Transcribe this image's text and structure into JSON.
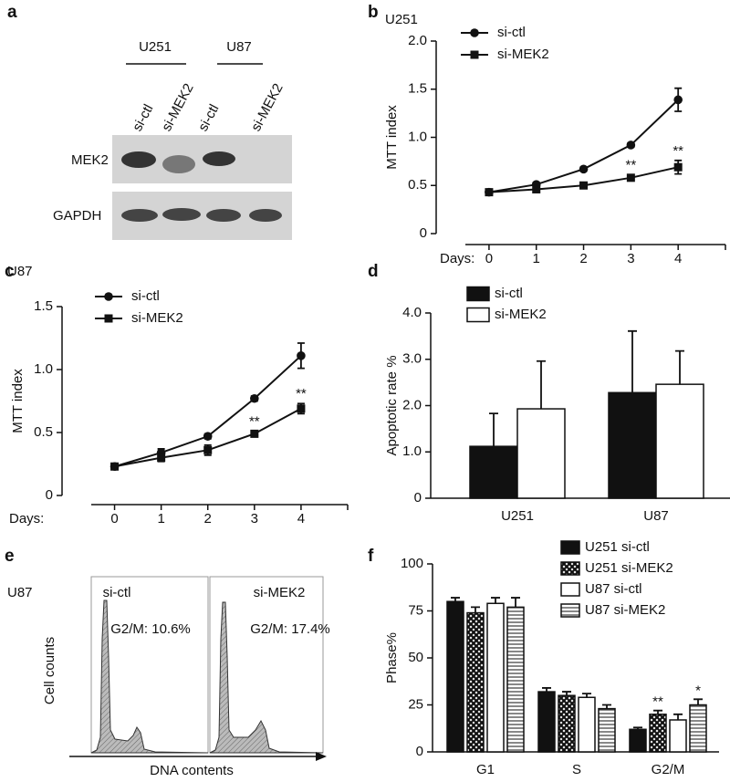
{
  "panel_labels": [
    "a",
    "b",
    "c",
    "d",
    "e",
    "f"
  ],
  "blot": {
    "groups": [
      "U251",
      "U87"
    ],
    "lanes": [
      "si-ctl",
      "si-MEK2",
      "si-ctl",
      "si-MEK2"
    ],
    "rows": [
      "MEK2",
      "GAPDH"
    ]
  },
  "flow": {
    "cell_line": "U87",
    "samples": [
      {
        "name": "si-ctl",
        "label": "G2/M: 10.6%"
      },
      {
        "name": "si-MEK2",
        "label": "G2/M: 17.4%"
      }
    ],
    "ylabel": "Cell counts",
    "xlabel": "DNA contents"
  },
  "chart_data": [
    {
      "type": "line",
      "subtitle": "U251",
      "xlabel": "Days:",
      "ylabel": "MTT index",
      "x": [
        0,
        1,
        2,
        3,
        4
      ],
      "xlim": [
        -0.5,
        5
      ],
      "xticks": [
        0,
        1,
        2,
        3,
        4
      ],
      "ylim": [
        0,
        2
      ],
      "yticks": [
        0,
        0.5,
        {
          "value": 1,
          "label": "1.0"
        },
        1.5,
        {
          "value": 2,
          "label": "2.0"
        }
      ],
      "series": [
        {
          "name": "si-ctl",
          "color": "#111111",
          "marker": "circle",
          "values": [
            0.43,
            0.51,
            0.67,
            0.92,
            1.39
          ],
          "errors": [
            0.02,
            0.02,
            0.02,
            0.02,
            0.12
          ]
        },
        {
          "name": "si-MEK2",
          "color": "#111111",
          "marker": "square",
          "values": [
            0.43,
            0.46,
            0.5,
            0.58,
            0.69
          ],
          "errors": [
            0.02,
            0.02,
            0.02,
            0.03,
            0.07
          ],
          "significance": [
            null,
            null,
            null,
            "**",
            "**"
          ]
        }
      ]
    },
    {
      "type": "line",
      "subtitle": "U87",
      "xlabel": "Days:",
      "ylabel": "MTT index",
      "x": [
        0,
        1,
        2,
        3,
        4
      ],
      "xlim": [
        -0.5,
        5
      ],
      "xticks": [
        0,
        1,
        2,
        3,
        4
      ],
      "ylim": [
        0,
        1.5
      ],
      "yticks": [
        0,
        0.5,
        {
          "value": 1,
          "label": "1.0"
        },
        1.5
      ],
      "series": [
        {
          "name": "si-ctl",
          "color": "#111111",
          "marker": "circle",
          "values": [
            0.23,
            0.34,
            0.47,
            0.77,
            1.11
          ],
          "errors": [
            0.01,
            0.03,
            0.02,
            0.02,
            0.1
          ]
        },
        {
          "name": "si-MEK2",
          "color": "#111111",
          "marker": "square",
          "values": [
            0.23,
            0.3,
            0.36,
            0.49,
            0.69
          ],
          "errors": [
            0.01,
            0.03,
            0.04,
            0.02,
            0.04
          ],
          "significance": [
            null,
            null,
            null,
            "**",
            "**"
          ]
        }
      ]
    },
    {
      "type": "bar",
      "ylabel": "Apoptotic rate %",
      "categories": [
        "U251",
        "U87"
      ],
      "ylim": [
        0,
        4
      ],
      "yticks": [
        0,
        {
          "value": 1,
          "label": "1.0"
        },
        {
          "value": 2,
          "label": "2.0"
        },
        {
          "value": 3,
          "label": "3.0"
        },
        {
          "value": 4,
          "label": "4.0"
        }
      ],
      "series": [
        {
          "name": "si-ctl",
          "color": "#111111",
          "values": [
            1.12,
            2.28
          ],
          "errors": [
            0.71,
            1.33
          ]
        },
        {
          "name": "si-MEK2",
          "color": "#ffffff",
          "values": [
            1.93,
            2.46
          ],
          "errors": [
            1.03,
            0.72
          ]
        }
      ]
    },
    {
      "type": "bar",
      "ylabel": "Phase%",
      "categories": [
        "G1",
        "S",
        "G2/M"
      ],
      "ylim": [
        0,
        100
      ],
      "yticks": [
        0,
        25,
        50,
        75,
        100
      ],
      "series": [
        {
          "name": "U251 si-ctl",
          "color": "#111111",
          "values": [
            80,
            32,
            12
          ],
          "errors": [
            2,
            2,
            1
          ]
        },
        {
          "name": "U251 si-MEK2",
          "color": "#ffffff",
          "pattern": "crosshatch",
          "values": [
            74,
            30,
            20
          ],
          "errors": [
            3,
            2,
            2
          ],
          "significance": [
            null,
            null,
            "**"
          ]
        },
        {
          "name": "U87 si-ctl",
          "color": "#ffffff",
          "values": [
            79,
            29,
            17
          ],
          "errors": [
            3,
            2,
            3
          ]
        },
        {
          "name": "U87 si-MEK2",
          "color": "#ffffff",
          "pattern": "hlines",
          "values": [
            77,
            23,
            25
          ],
          "errors": [
            5,
            2,
            3
          ],
          "significance": [
            null,
            null,
            "*"
          ]
        }
      ]
    }
  ]
}
